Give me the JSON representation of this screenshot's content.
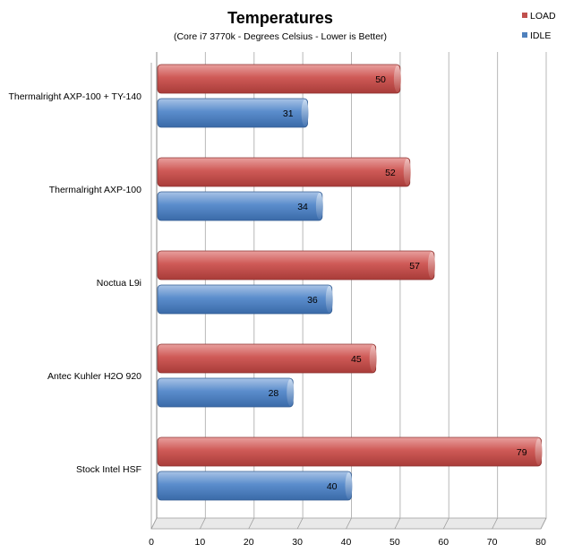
{
  "chart_data": {
    "type": "bar",
    "orientation": "horizontal",
    "title": "Temperatures",
    "subtitle": "(Core i7 3770k - Degrees Celsius - Lower is Better)",
    "categories": [
      "Thermalright AXP-100 + TY-140",
      "Thermalright AXP-100",
      "Noctua L9i",
      "Antec Kuhler H2O 920",
      "Stock Intel HSF"
    ],
    "series": [
      {
        "name": "LOAD",
        "color": "#c0504d",
        "values": [
          50,
          52,
          57,
          45,
          79
        ]
      },
      {
        "name": "IDLE",
        "color": "#4f81bd",
        "values": [
          31,
          34,
          36,
          28,
          40
        ]
      }
    ],
    "xlim": [
      0,
      80
    ],
    "xticks": [
      0,
      10,
      20,
      30,
      40,
      50,
      60,
      70,
      80
    ],
    "grid": true,
    "legend": "top-right"
  }
}
